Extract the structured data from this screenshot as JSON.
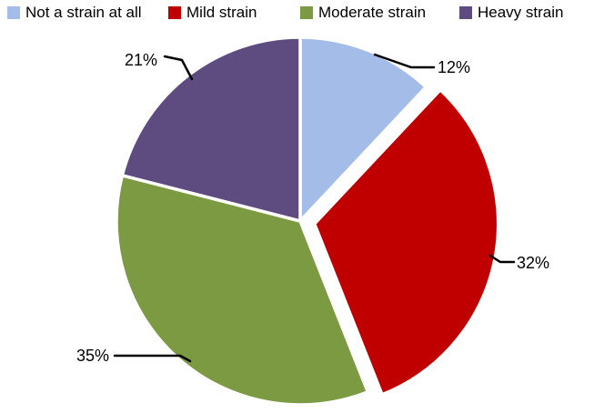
{
  "chart_data": {
    "type": "pie",
    "title": "",
    "categories": [
      "Not a strain at all",
      "Mild strain",
      "Moderate strain",
      "Heavy strain"
    ],
    "values": [
      12,
      32,
      35,
      21
    ],
    "data_labels": [
      "12%",
      "32%",
      "35%",
      "21%"
    ],
    "colors": [
      "#a3bce8",
      "#c00000",
      "#7b9a41",
      "#5e4b80"
    ],
    "exploded_slice": "Mild strain",
    "exploded_index": 1,
    "start_angle_deg": 0,
    "direction": "clockwise",
    "legend_position": "top",
    "background_color": "#ffffff",
    "leader_line_color": "#000000",
    "label_text_color": "#000000",
    "slice_border_color": "#ffffff"
  },
  "legend": {
    "items": [
      {
        "label": "Not a strain at all",
        "color": "#a3bce8"
      },
      {
        "label": "Mild strain",
        "color": "#c00000"
      },
      {
        "label": "Moderate strain",
        "color": "#7b9a41"
      },
      {
        "label": "Heavy strain",
        "color": "#5e4b80"
      }
    ]
  }
}
